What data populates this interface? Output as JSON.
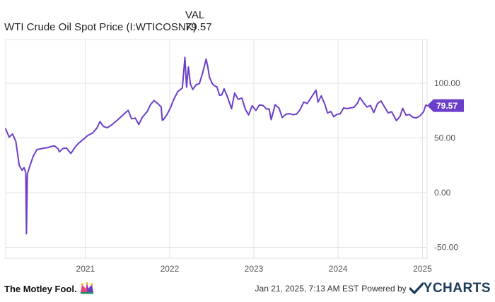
{
  "legend": {
    "column_header": "VAL",
    "series_name": "WTI Crude Oil Spot Price (I:WTICOSNK)",
    "series_value": "79.57"
  },
  "footer": {
    "brand": "The Motley Fool.",
    "timestamp": "Jan 21, 2025, 7:13 AM EST",
    "powered_by": "Powered by",
    "provider": "YCHARTS"
  },
  "colors": {
    "line": "#6b3fc9",
    "grid": "#dde1e6",
    "tick_text": "#555555",
    "ycharts": "#1b3a57"
  },
  "chart_data": {
    "type": "line",
    "title": "",
    "xlabel": "",
    "ylabel": "",
    "ylim": [
      -50,
      100
    ],
    "yticks": [
      -50,
      0,
      50,
      100
    ],
    "ytick_labels": [
      "-50.00",
      "0.00",
      "50.00",
      "100.00"
    ],
    "xticks": [
      "2021-01-01",
      "2022-01-01",
      "2023-01-01",
      "2024-01-01",
      "2025-01-01"
    ],
    "xtick_labels": [
      "2021",
      "2022",
      "2023",
      "2024",
      "2025"
    ],
    "xlim": [
      "2020-01-21",
      "2025-01-21"
    ],
    "grid": true,
    "last_value_label": "79.57",
    "series": [
      {
        "name": "WTI Crude Oil Spot Price (I:WTICOSNK)",
        "points": [
          [
            "2020-01-21",
            58.3
          ],
          [
            "2020-02-05",
            50.8
          ],
          [
            "2020-02-20",
            53.6
          ],
          [
            "2020-03-05",
            46.8
          ],
          [
            "2020-03-20",
            25.0
          ],
          [
            "2020-04-01",
            20.5
          ],
          [
            "2020-04-10",
            22.8
          ],
          [
            "2020-04-17",
            18.3
          ],
          [
            "2020-04-20",
            -37.6
          ],
          [
            "2020-04-24",
            17.0
          ],
          [
            "2020-05-05",
            24.5
          ],
          [
            "2020-05-20",
            33.5
          ],
          [
            "2020-06-05",
            39.5
          ],
          [
            "2020-06-20",
            40.0
          ],
          [
            "2020-07-05",
            40.7
          ],
          [
            "2020-07-20",
            41.0
          ],
          [
            "2020-08-05",
            42.2
          ],
          [
            "2020-08-20",
            42.8
          ],
          [
            "2020-09-05",
            39.8
          ],
          [
            "2020-09-10",
            37.3
          ],
          [
            "2020-09-25",
            40.3
          ],
          [
            "2020-10-10",
            40.8
          ],
          [
            "2020-10-30",
            35.8
          ],
          [
            "2020-11-15",
            41.0
          ],
          [
            "2020-12-01",
            45.0
          ],
          [
            "2020-12-20",
            48.2
          ],
          [
            "2021-01-10",
            52.2
          ],
          [
            "2021-02-01",
            54.5
          ],
          [
            "2021-02-20",
            59.2
          ],
          [
            "2021-03-05",
            65.0
          ],
          [
            "2021-03-20",
            60.5
          ],
          [
            "2021-04-05",
            59.3
          ],
          [
            "2021-04-25",
            62.0
          ],
          [
            "2021-05-15",
            65.5
          ],
          [
            "2021-06-05",
            69.5
          ],
          [
            "2021-06-25",
            73.5
          ],
          [
            "2021-07-05",
            75.2
          ],
          [
            "2021-07-20",
            67.5
          ],
          [
            "2021-08-05",
            68.2
          ],
          [
            "2021-08-20",
            62.3
          ],
          [
            "2021-09-05",
            69.0
          ],
          [
            "2021-09-25",
            74.0
          ],
          [
            "2021-10-10",
            80.5
          ],
          [
            "2021-10-25",
            84.2
          ],
          [
            "2021-11-10",
            81.5
          ],
          [
            "2021-11-25",
            78.4
          ],
          [
            "2021-11-30",
            66.2
          ],
          [
            "2021-12-05",
            66.8
          ],
          [
            "2021-12-20",
            71.2
          ],
          [
            "2022-01-05",
            77.8
          ],
          [
            "2022-01-20",
            85.8
          ],
          [
            "2022-02-05",
            92.3
          ],
          [
            "2022-02-25",
            95.7
          ],
          [
            "2022-03-08",
            123.7
          ],
          [
            "2022-03-15",
            96.4
          ],
          [
            "2022-03-23",
            114.9
          ],
          [
            "2022-04-01",
            99.3
          ],
          [
            "2022-04-11",
            94.3
          ],
          [
            "2022-04-25",
            98.5
          ],
          [
            "2022-05-10",
            99.8
          ],
          [
            "2022-05-25",
            110.3
          ],
          [
            "2022-06-08",
            122.1
          ],
          [
            "2022-06-15",
            115.3
          ],
          [
            "2022-06-22",
            105.9
          ],
          [
            "2022-07-05",
            99.5
          ],
          [
            "2022-07-15",
            97.6
          ],
          [
            "2022-07-25",
            96.7
          ],
          [
            "2022-08-05",
            89.0
          ],
          [
            "2022-08-15",
            89.4
          ],
          [
            "2022-08-25",
            95.0
          ],
          [
            "2022-09-10",
            86.8
          ],
          [
            "2022-09-26",
            76.7
          ],
          [
            "2022-10-10",
            91.1
          ],
          [
            "2022-10-25",
            85.3
          ],
          [
            "2022-11-10",
            86.5
          ],
          [
            "2022-11-25",
            76.3
          ],
          [
            "2022-12-09",
            71.0
          ],
          [
            "2022-12-25",
            79.5
          ],
          [
            "2023-01-10",
            75.1
          ],
          [
            "2023-01-25",
            80.2
          ],
          [
            "2023-02-10",
            79.7
          ],
          [
            "2023-02-25",
            76.3
          ],
          [
            "2023-03-08",
            76.7
          ],
          [
            "2023-03-17",
            66.7
          ],
          [
            "2023-04-03",
            80.4
          ],
          [
            "2023-04-20",
            77.3
          ],
          [
            "2023-05-04",
            68.6
          ],
          [
            "2023-05-20",
            71.7
          ],
          [
            "2023-06-05",
            72.2
          ],
          [
            "2023-06-20",
            71.2
          ],
          [
            "2023-07-05",
            71.8
          ],
          [
            "2023-07-20",
            75.8
          ],
          [
            "2023-08-05",
            82.8
          ],
          [
            "2023-08-20",
            81.5
          ],
          [
            "2023-09-05",
            86.5
          ],
          [
            "2023-09-27",
            93.7
          ],
          [
            "2023-10-06",
            82.8
          ],
          [
            "2023-10-20",
            88.5
          ],
          [
            "2023-11-05",
            80.5
          ],
          [
            "2023-11-16",
            72.9
          ],
          [
            "2023-12-01",
            74.1
          ],
          [
            "2023-12-13",
            69.4
          ],
          [
            "2023-12-28",
            71.7
          ],
          [
            "2024-01-10",
            72.0
          ],
          [
            "2024-01-25",
            77.4
          ],
          [
            "2024-02-10",
            76.8
          ],
          [
            "2024-02-25",
            77.5
          ],
          [
            "2024-03-10",
            78.0
          ],
          [
            "2024-03-25",
            81.8
          ],
          [
            "2024-04-05",
            86.9
          ],
          [
            "2024-04-20",
            82.3
          ],
          [
            "2024-05-05",
            78.3
          ],
          [
            "2024-05-20",
            79.6
          ],
          [
            "2024-06-04",
            73.2
          ],
          [
            "2024-06-20",
            81.5
          ],
          [
            "2024-07-05",
            83.9
          ],
          [
            "2024-07-20",
            78.5
          ],
          [
            "2024-08-05",
            72.9
          ],
          [
            "2024-08-20",
            74.0
          ],
          [
            "2024-09-10",
            65.8
          ],
          [
            "2024-09-25",
            69.4
          ],
          [
            "2024-10-07",
            77.1
          ],
          [
            "2024-10-22",
            70.8
          ],
          [
            "2024-11-05",
            71.5
          ],
          [
            "2024-11-20",
            68.9
          ],
          [
            "2024-12-05",
            68.3
          ],
          [
            "2024-12-20",
            70.0
          ],
          [
            "2025-01-06",
            74.0
          ],
          [
            "2025-01-15",
            80.0
          ],
          [
            "2025-01-21",
            79.57
          ]
        ]
      }
    ]
  }
}
